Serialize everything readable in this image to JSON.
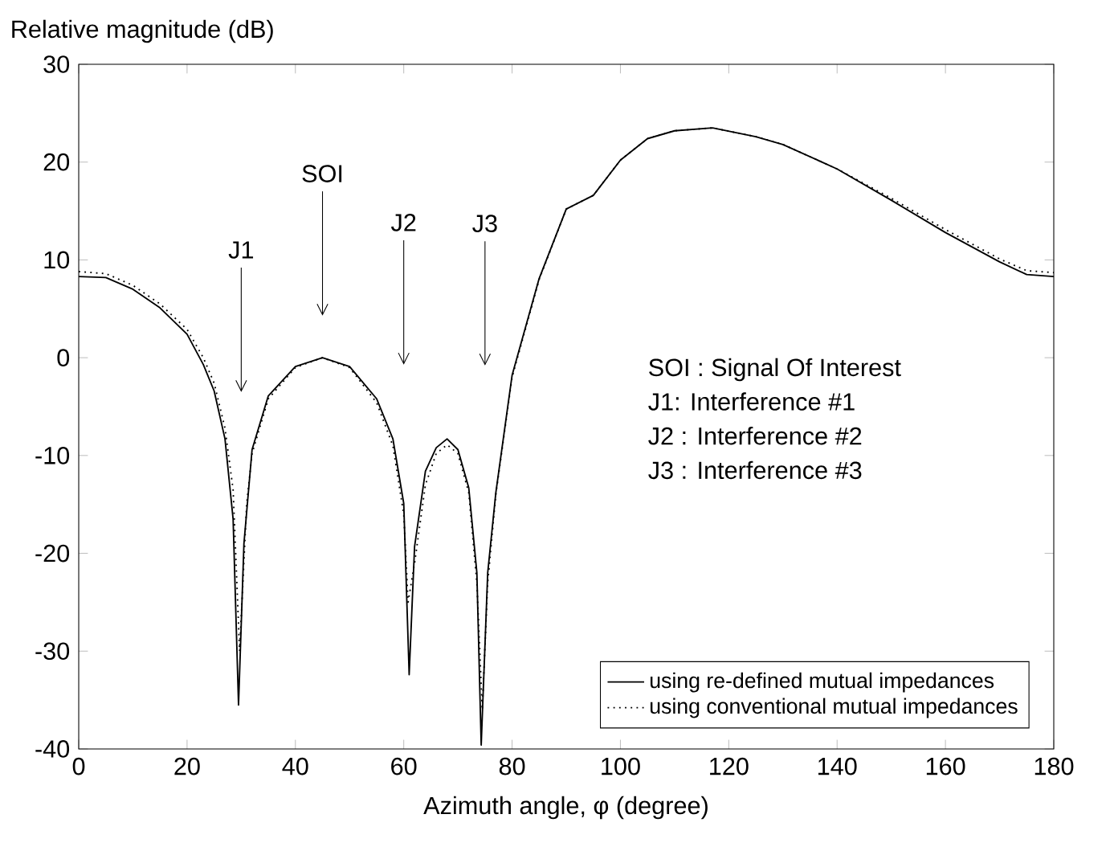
{
  "chart_data": {
    "type": "line",
    "xlabel": "Azimuth angle, φ  (degree)",
    "ylabel": "Relative magnitude (dB)",
    "xlim": [
      0,
      180
    ],
    "ylim": [
      -40,
      30
    ],
    "xticks": [
      0,
      20,
      40,
      60,
      80,
      100,
      120,
      140,
      160,
      180
    ],
    "yticks": [
      -40,
      -30,
      -20,
      -10,
      0,
      10,
      20,
      30
    ],
    "grid": false,
    "legend": "bottom right",
    "marker": "none",
    "series": [
      {
        "name": "using re-defined mutual impedances",
        "color": "#000000",
        "line_style": "solid",
        "x": [
          0,
          5,
          10,
          15,
          20,
          23,
          25,
          27,
          28.5,
          29.5,
          30.5,
          32,
          35,
          40,
          45,
          50,
          55,
          58,
          60,
          61,
          62,
          64,
          66,
          68,
          70,
          72,
          73.5,
          74.3,
          75.5,
          77,
          80,
          85,
          90,
          95,
          100,
          105,
          110,
          117,
          125,
          130,
          140,
          150,
          160,
          170,
          175,
          180
        ],
        "values": [
          8.3,
          8.2,
          7.0,
          5.1,
          2.4,
          -0.7,
          -3.4,
          -8.3,
          -16.5,
          -35.5,
          -19,
          -9.4,
          -3.9,
          -0.9,
          0,
          -0.9,
          -4.2,
          -8.3,
          -14.9,
          -32.4,
          -19.3,
          -11.6,
          -9.2,
          -8.3,
          -9.4,
          -13.3,
          -22,
          -39.6,
          -22,
          -13.8,
          -1.8,
          8.1,
          15.2,
          16.6,
          20.2,
          22.4,
          23.2,
          23.5,
          22.6,
          21.8,
          19.3,
          16.1,
          12.8,
          9.8,
          8.5,
          8.3
        ]
      },
      {
        "name": "using conventional mutual impedances",
        "color": "#000000",
        "line_style": "dotted",
        "x": [
          0,
          5,
          10,
          15,
          20,
          23,
          25,
          27,
          28.5,
          29.7,
          31,
          32,
          35,
          40,
          45,
          50,
          55,
          58,
          60,
          60.8,
          62,
          64,
          66,
          68,
          70,
          72,
          73.5,
          74.5,
          75.5,
          77,
          80,
          85,
          90,
          95,
          100,
          105,
          110,
          117,
          125,
          130,
          140,
          150,
          160,
          170,
          175,
          180
        ],
        "values": [
          8.8,
          8.6,
          7.4,
          5.5,
          2.9,
          0,
          -2.6,
          -7.2,
          -13.5,
          -30,
          -15,
          -9.8,
          -4.2,
          -1.0,
          0,
          -1.0,
          -4.6,
          -9,
          -16,
          -25,
          -21,
          -13,
          -9.8,
          -8.9,
          -9.8,
          -13.8,
          -23,
          -36,
          -23,
          -14,
          -2,
          8,
          15.2,
          16.6,
          20.2,
          22.4,
          23.2,
          23.5,
          22.6,
          21.8,
          19.3,
          16.3,
          13.1,
          10.1,
          8.9,
          8.7
        ]
      }
    ],
    "annotations": [
      "J1",
      "SOI",
      "J2",
      "J3",
      "SOI : Signal Of Interest",
      "J1: Interference #1",
      "J2 : Interference #2",
      "J3 : Interference #3"
    ]
  }
}
